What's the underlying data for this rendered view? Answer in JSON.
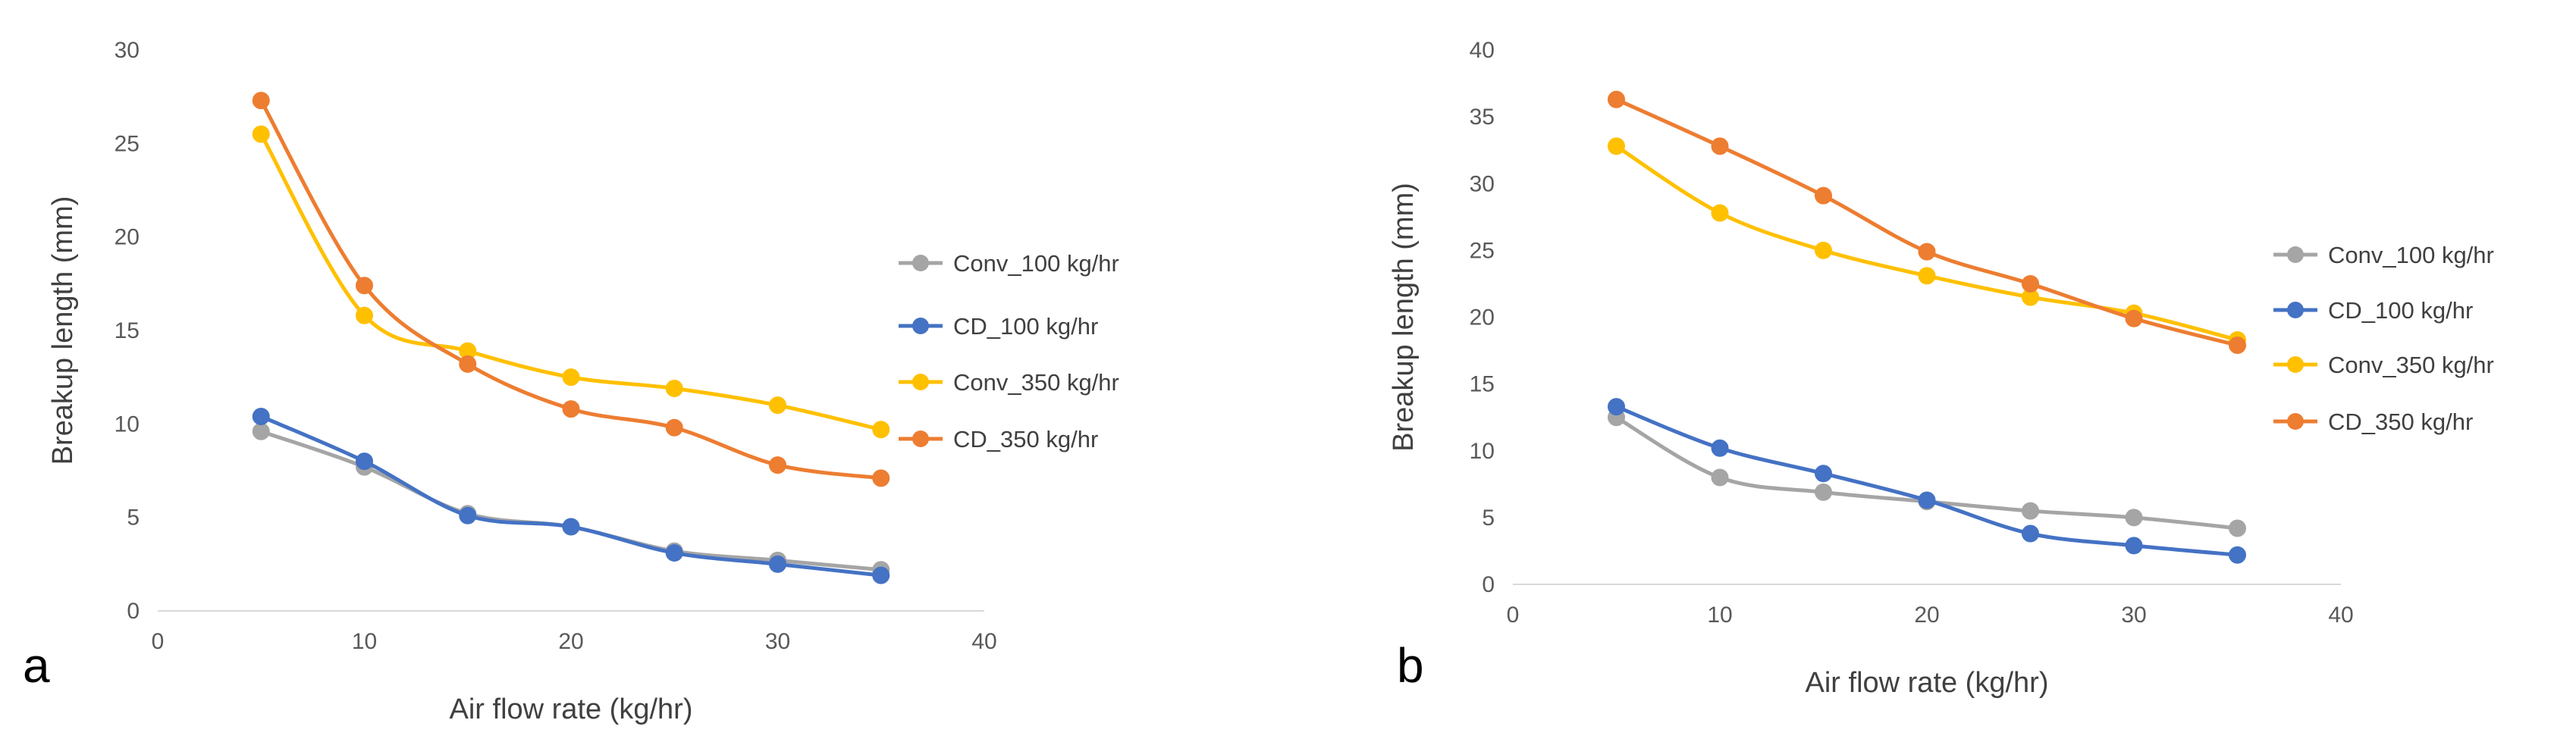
{
  "chart_data": [
    {
      "type": "line",
      "panel_label": "a",
      "title": "",
      "xlabel": "Air flow rate (kg/hr)",
      "ylabel": "Breakup length (mm)",
      "xlim": [
        0,
        40
      ],
      "ylim": [
        0,
        30
      ],
      "xticks": [
        0,
        10,
        20,
        30,
        40
      ],
      "yticks": [
        0,
        5,
        10,
        15,
        20,
        25,
        30
      ],
      "grid": false,
      "legend_position": "right",
      "x": [
        5,
        10,
        15,
        20,
        25,
        30,
        35
      ],
      "series": [
        {
          "name": "Conv_100 kg/hr",
          "color": "#a5a5a5",
          "values": [
            9.6,
            7.7,
            5.2,
            4.5,
            3.2,
            2.7,
            2.2
          ]
        },
        {
          "name": "CD_100 kg/hr",
          "color": "#4472c4",
          "values": [
            10.4,
            8.0,
            5.1,
            4.5,
            3.1,
            2.5,
            1.9
          ]
        },
        {
          "name": "Conv_350 kg/hr",
          "color": "#ffc000",
          "values": [
            25.5,
            15.8,
            13.9,
            12.5,
            11.9,
            11.0,
            9.7
          ]
        },
        {
          "name": "CD_350 kg/hr",
          "color": "#ed7d31",
          "values": [
            27.3,
            17.4,
            13.2,
            10.8,
            9.8,
            7.8,
            7.1
          ]
        }
      ]
    },
    {
      "type": "line",
      "panel_label": "b",
      "title": "",
      "xlabel": "Air flow rate (kg/hr)",
      "ylabel": "Breakup length (mm)",
      "xlim": [
        0,
        40
      ],
      "ylim": [
        0,
        40
      ],
      "xticks": [
        0,
        10,
        20,
        30,
        40
      ],
      "yticks": [
        0,
        5,
        10,
        15,
        20,
        25,
        30,
        35,
        40
      ],
      "grid": false,
      "legend_position": "right",
      "x": [
        5,
        10,
        15,
        20,
        25,
        30,
        35
      ],
      "series": [
        {
          "name": "Conv_100 kg/hr",
          "color": "#a5a5a5",
          "values": [
            12.5,
            8.0,
            6.9,
            6.2,
            5.5,
            5.0,
            4.2
          ]
        },
        {
          "name": "CD_100 kg/hr",
          "color": "#4472c4",
          "values": [
            13.3,
            10.2,
            8.3,
            6.3,
            3.8,
            2.9,
            2.2
          ]
        },
        {
          "name": "Conv_350 kg/hr",
          "color": "#ffc000",
          "values": [
            32.8,
            27.8,
            25.0,
            23.1,
            21.5,
            20.3,
            18.3
          ]
        },
        {
          "name": "CD_350 kg/hr",
          "color": "#ed7d31",
          "values": [
            36.3,
            32.8,
            29.1,
            24.9,
            22.5,
            19.9,
            17.9
          ]
        }
      ]
    }
  ]
}
